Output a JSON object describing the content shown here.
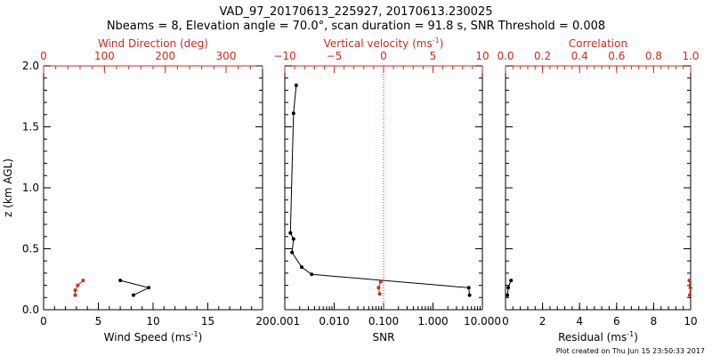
{
  "header": {
    "title": "VAD_97_20170613_225927, 20170613.230025",
    "subtitle": "Nbeams = 8, Elevation angle = 70.0°, scan duration = 91.8 s, SNR Threshold = 0.008"
  },
  "footer": {
    "note": "Plot created on Thu Jun 15 23:50:33 2017"
  },
  "colors": {
    "axis": "#000000",
    "secondary": "#cc2a1e"
  },
  "shared_y": {
    "label": "z (km AGL)",
    "range": [
      0,
      2
    ],
    "ticks": [
      "0.0",
      "0.5",
      "1.0",
      "1.5",
      "2.0"
    ]
  },
  "chart_data": [
    {
      "type": "line",
      "panel": "wind",
      "xlabel": "Wind Speed (ms-1)",
      "xlim": [
        0,
        20
      ],
      "x_ticks": [
        0,
        5,
        10,
        15,
        20
      ],
      "x2label": "Wind Direction (deg)",
      "x2lim": [
        0,
        360
      ],
      "x2_ticks": [
        0,
        100,
        200,
        300
      ],
      "series": [
        {
          "axis": "bottom",
          "color": "#000000",
          "x": [
            8.2,
            9.6,
            7.0
          ],
          "y": [
            0.12,
            0.18,
            0.24
          ]
        },
        {
          "axis": "top",
          "color": "#cc2a1e",
          "x": [
            52,
            52,
            56,
            65
          ],
          "y": [
            0.12,
            0.16,
            0.2,
            0.24
          ]
        }
      ]
    },
    {
      "type": "line",
      "panel": "snr",
      "xlabel": "SNR",
      "xscale": "log",
      "xlim": [
        0.001,
        10
      ],
      "x_ticks": [
        "0.001",
        "0.010",
        "0.100",
        "1.000",
        "10.000"
      ],
      "x2label": "Vertical velocity (ms-1)",
      "x2lim": [
        -10,
        10
      ],
      "x2_ticks": [
        -10,
        -5,
        0,
        5,
        10
      ],
      "reference_line_x2": 0,
      "series": [
        {
          "axis": "bottom",
          "color": "#000000",
          "x": [
            5.5,
            5.3,
            0.0035,
            0.0022,
            0.0014,
            0.0015,
            0.0013,
            0.0015,
            0.0017
          ],
          "y": [
            0.12,
            0.18,
            0.29,
            0.35,
            0.47,
            0.58,
            0.63,
            1.61,
            1.84
          ]
        },
        {
          "axis": "top",
          "color": "#cc2a1e",
          "x": [
            -0.4,
            -0.5,
            -0.3
          ],
          "y": [
            0.13,
            0.18,
            0.23
          ]
        }
      ]
    },
    {
      "type": "line",
      "panel": "residual",
      "xlabel": "Residual (ms-1)",
      "xlim": [
        0,
        10
      ],
      "x_ticks": [
        0,
        2,
        4,
        6,
        8,
        10
      ],
      "x2label": "Correlation",
      "x2lim": [
        0,
        1
      ],
      "x2_ticks": [
        "0.0",
        "0.2",
        "0.4",
        "0.6",
        "0.8",
        "1.0"
      ],
      "series": [
        {
          "axis": "bottom",
          "color": "#000000",
          "x": [
            0.1,
            0.15,
            0.3
          ],
          "y": [
            0.12,
            0.18,
            0.24
          ]
        },
        {
          "axis": "top",
          "color": "#cc2a1e",
          "x": [
            0.995,
            0.998,
            0.993
          ],
          "y": [
            0.12,
            0.18,
            0.24
          ]
        }
      ]
    }
  ]
}
